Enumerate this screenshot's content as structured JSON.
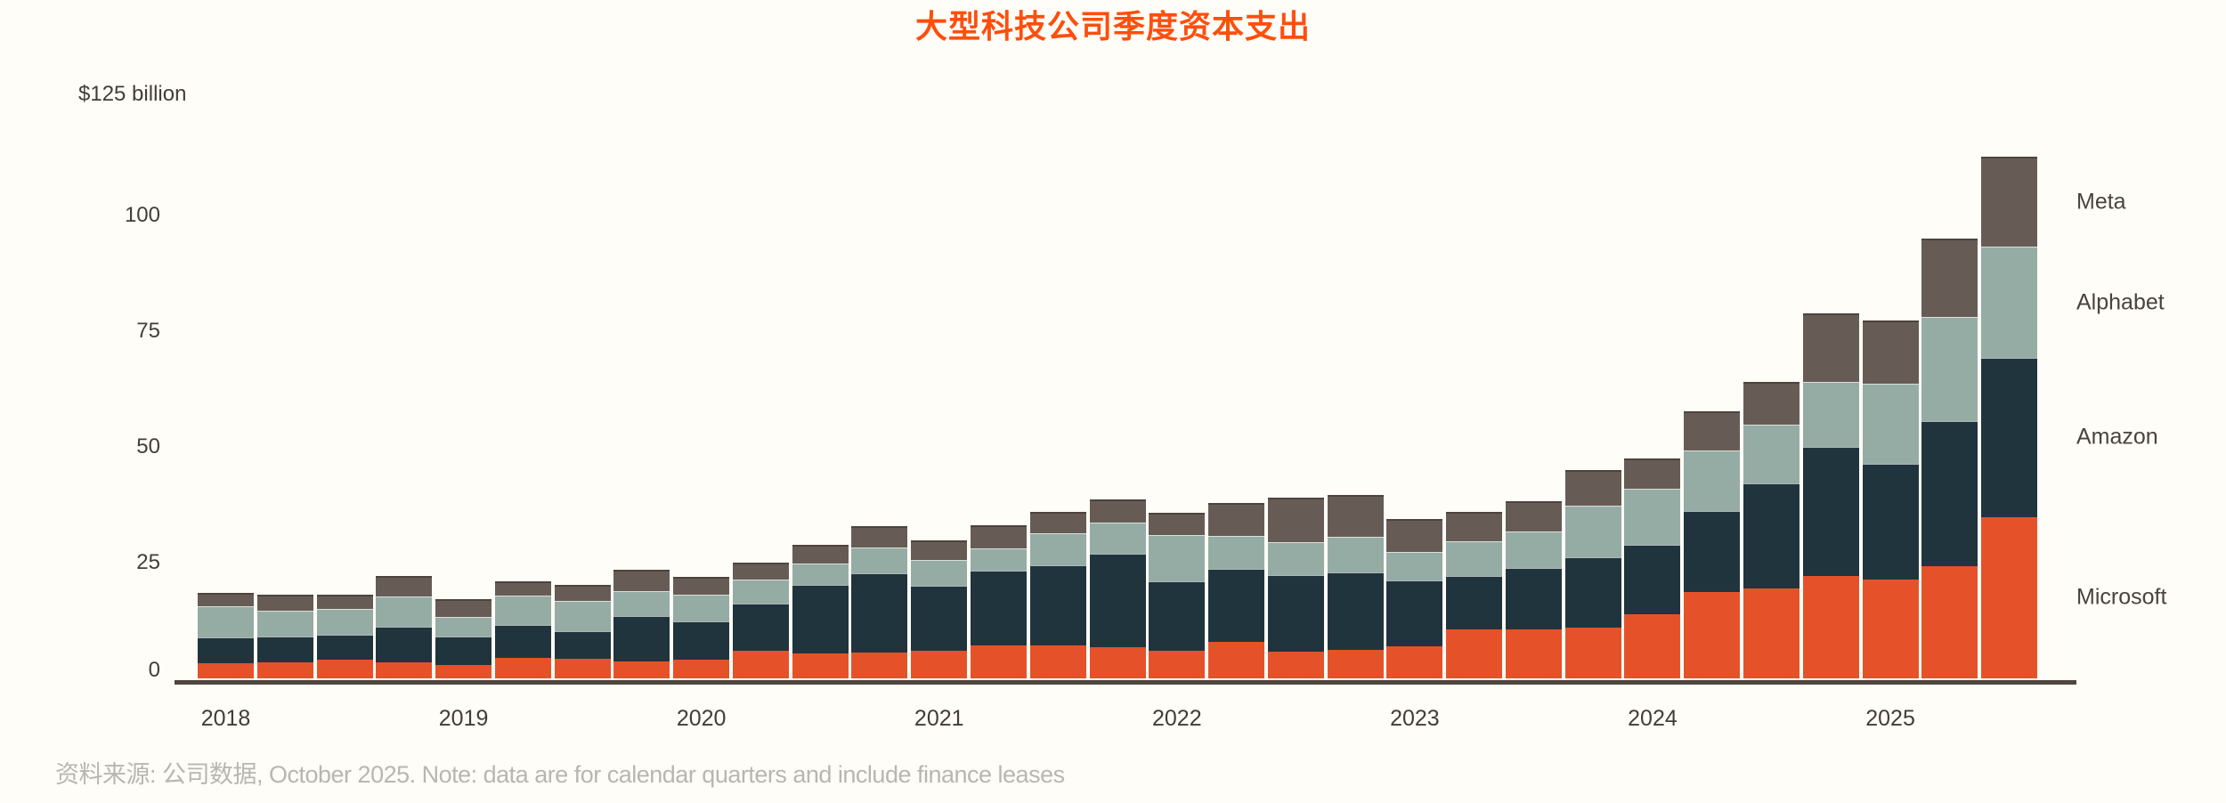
{
  "title": "大型科技公司季度资本支出",
  "y_axis": {
    "top_label": "$125 billion",
    "ticks": [
      0,
      25,
      50,
      75,
      100
    ],
    "max_value": 125
  },
  "x_axis": {
    "year_labels": [
      "2018",
      "2019",
      "2020",
      "2021",
      "2022",
      "2023",
      "2024",
      "2025"
    ]
  },
  "legend": [
    "Meta",
    "Alphabet",
    "Amazon",
    "Microsoft"
  ],
  "source_note": "资料来源: 公司数据, October 2025. Note: data are for calendar quarters and include finance leases",
  "colors": {
    "title": "#FF4E0C",
    "background": "#FFFDF7",
    "axis_line": "#4F463E",
    "tick_text": "#433D38",
    "legend_text": "#4A423C",
    "source_text": "#B9B6B2",
    "microsoft": "#E5522A",
    "amazon": "#20343D",
    "alphabet": "#95ACA5",
    "meta": "#675C55"
  },
  "chart_data": {
    "type": "bar",
    "stacked": true,
    "unit": "USD billions",
    "title": "大型科技公司季度资本支出",
    "ylim": [
      0,
      125
    ],
    "grid": false,
    "legend_position": "right",
    "categories": [
      "2018 Q1",
      "2018 Q2",
      "2018 Q3",
      "2018 Q4",
      "2019 Q1",
      "2019 Q2",
      "2019 Q3",
      "2019 Q4",
      "2020 Q1",
      "2020 Q2",
      "2020 Q3",
      "2020 Q4",
      "2021 Q1",
      "2021 Q2",
      "2021 Q3",
      "2021 Q4",
      "2022 Q1",
      "2022 Q2",
      "2022 Q3",
      "2022 Q4",
      "2023 Q1",
      "2023 Q2",
      "2023 Q3",
      "2023 Q4",
      "2024 Q1",
      "2024 Q2",
      "2024 Q3",
      "2024 Q4",
      "2025 Q1",
      "2025 Q2",
      "2025 Q3"
    ],
    "series": [
      {
        "name": "Microsoft",
        "color": "#E5522A",
        "values": [
          3.2,
          3.5,
          4.0,
          3.5,
          2.9,
          4.5,
          4.2,
          3.7,
          4.1,
          6.0,
          5.4,
          5.6,
          5.9,
          7.1,
          7.1,
          6.7,
          6.0,
          7.8,
          5.8,
          6.1,
          6.9,
          10.5,
          10.6,
          11.0,
          13.9,
          18.6,
          19.5,
          22.2,
          21.4,
          24.2,
          34.9
        ]
      },
      {
        "name": "Amazon",
        "color": "#20343D",
        "values": [
          5.6,
          5.6,
          5.5,
          7.6,
          6.1,
          7.1,
          5.9,
          9.8,
          8.3,
          10.1,
          14.8,
          17.1,
          14.1,
          16.2,
          17.3,
          20.3,
          14.9,
          15.9,
          16.6,
          16.8,
          14.2,
          11.6,
          13.2,
          15.2,
          15.0,
          17.5,
          22.6,
          27.8,
          25.0,
          31.4,
          34.3
        ]
      },
      {
        "name": "Alphabet",
        "color": "#95ACA5",
        "values": [
          6.7,
          5.6,
          5.5,
          6.6,
          4.2,
          6.2,
          6.6,
          5.3,
          5.7,
          5.3,
          4.7,
          5.5,
          5.5,
          4.8,
          6.9,
          6.7,
          10.0,
          7.1,
          7.0,
          7.7,
          6.3,
          7.6,
          8.0,
          11.1,
          12.0,
          13.2,
          12.8,
          14.1,
          17.2,
          22.4,
          24.0
        ]
      },
      {
        "name": "Meta",
        "color": "#675C55",
        "values": [
          2.9,
          3.4,
          3.1,
          4.5,
          4.0,
          3.2,
          3.5,
          4.6,
          3.9,
          3.6,
          4.0,
          4.6,
          4.3,
          4.9,
          4.7,
          5.0,
          4.9,
          7.1,
          9.6,
          9.0,
          7.1,
          6.2,
          6.5,
          7.7,
          6.6,
          8.3,
          9.2,
          14.7,
          13.7,
          17.0,
          19.4
        ]
      }
    ]
  }
}
